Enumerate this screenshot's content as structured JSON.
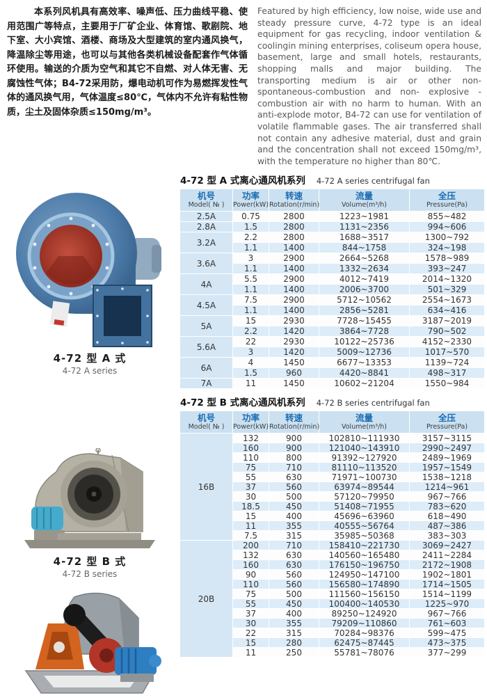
{
  "intro": {
    "chinese": "本系列风机具有高效率、噪声低、压力曲线平稳、使用范围广等特点，主要用于厂矿企业、体育馆、歌剧院、地下室、大小宾馆、酒楼、商场及大型建筑的室内通风换气，降温除尘等用途，也可以与其他各类机械设备配套作气体循环使用。输送的介质为空气和其它不自燃、对人体无害、无腐蚀性气体；B4-72采用防，爆电动机可作为易燃挥发性气体的通风换气用，气体温度≤80℃，气体内不允许有粘性物质，尘土及固体杂质≤150mg/m³。",
    "english": "Featured by high efficiency, low noise, wide use and steady pressure curve, 4-72 type is an ideal equipment for gas recycling, indoor ventilation & coolingin mining enterprises, coliseum opera house, basement, large and small hotels, restaurants, shopping malls and major building. The transporting medium is air or other non- spontaneous-combustion and non- explosive -combustion air with no harm to human. With an anti-explode motor, B4-72 can use for ventilation of volatile flammable gases. The air transferred shall not contain any adhesive material, dust and grain and the concentration shall not exceed 150mg/m³, with the temperature no higher than 80℃."
  },
  "products": [
    {
      "caption_cn": "4-72 型 A 式",
      "caption_en": "4-72 A series",
      "image": "blue-a-type-centrifugal-fan"
    },
    {
      "caption_cn": "4-72 型 B 式",
      "caption_en": "4-72 B series",
      "image": "gray-b-type-centrifugal-fan"
    },
    {
      "caption_cn": "",
      "caption_en": "",
      "image": "belt-driven-centrifugal-fan"
    }
  ],
  "colors": {
    "table_header_bg": "#cbe1f1",
    "table_stripe_bg": "#dcecf8",
    "model_cell_bg": "#d5e7f5",
    "header_text_blue": "#1d6cb1"
  },
  "table_a": {
    "title_cn": "4-72 型 A 式离心通风机系列",
    "title_en": "4-72 A series centrifugal fan",
    "columns": [
      {
        "cn": "机号",
        "en": "Model( № )"
      },
      {
        "cn": "功率",
        "en": "Power(kW)"
      },
      {
        "cn": "转速",
        "en": "Rotation(r/min)"
      },
      {
        "cn": "流量",
        "en": "Volume(m³/h)"
      },
      {
        "cn": "全压",
        "en": "Pressure(Pa)"
      }
    ],
    "groups": [
      {
        "model": "2.5A",
        "rows": [
          [
            "0.75",
            "2800",
            "1223~1981",
            "855~482"
          ]
        ]
      },
      {
        "model": "2.8A",
        "rows": [
          [
            "1.5",
            "2800",
            "1131~2356",
            "994~606"
          ]
        ]
      },
      {
        "model": "3.2A",
        "rows": [
          [
            "2.2",
            "2800",
            "1688~3517",
            "1300~792"
          ],
          [
            "1.1",
            "1400",
            "844~1758",
            "324~198"
          ]
        ]
      },
      {
        "model": "3.6A",
        "rows": [
          [
            "3",
            "2900",
            "2664~5268",
            "1578~989"
          ],
          [
            "1.1",
            "1400",
            "1332~2634",
            "393~247"
          ]
        ]
      },
      {
        "model": "4A",
        "rows": [
          [
            "5.5",
            "2900",
            "4012~7419",
            "2014~1320"
          ],
          [
            "1.1",
            "1400",
            "2006~3700",
            "501~329"
          ]
        ]
      },
      {
        "model": "4.5A",
        "rows": [
          [
            "7.5",
            "2900",
            "5712~10562",
            "2554~1673"
          ],
          [
            "1.1",
            "1400",
            "2856~5281",
            "634~416"
          ]
        ]
      },
      {
        "model": "5A",
        "rows": [
          [
            "15",
            "2930",
            "7728~15455",
            "3187~2019"
          ],
          [
            "2.2",
            "1420",
            "3864~7728",
            "790~502"
          ]
        ]
      },
      {
        "model": "5.6A",
        "rows": [
          [
            "22",
            "2930",
            "10122~25736",
            "4152~2330"
          ],
          [
            "3",
            "1420",
            "5009~12736",
            "1017~570"
          ]
        ]
      },
      {
        "model": "6A",
        "rows": [
          [
            "4",
            "1450",
            "6677~13353",
            "1139~724"
          ],
          [
            "1.5",
            "960",
            "4420~8841",
            "498~317"
          ]
        ]
      },
      {
        "model": "7A",
        "rows": [
          [
            "11",
            "1450",
            "10602~21204",
            "1550~984"
          ]
        ]
      }
    ]
  },
  "table_b": {
    "title_cn": "4-72 型 B 式离心通风机系列",
    "title_en": "4-72 B series centrifugal fan",
    "columns": [
      {
        "cn": "机号",
        "en": "Model( № )"
      },
      {
        "cn": "功率",
        "en": "Power(kW)"
      },
      {
        "cn": "转速",
        "en": "Rotation(r/min)"
      },
      {
        "cn": "流量",
        "en": "Volume(m³/h)"
      },
      {
        "cn": "全压",
        "en": "Pressure(Pa)"
      }
    ],
    "groups": [
      {
        "model": "16B",
        "rows": [
          [
            "132",
            "900",
            "102810~111930",
            "3157~3115"
          ],
          [
            "160",
            "900",
            "121040~143910",
            "2990~2497"
          ],
          [
            "110",
            "800",
            "91392~127920",
            "2489~1969"
          ],
          [
            "75",
            "710",
            "81110~113520",
            "1957~1549"
          ],
          [
            "55",
            "630",
            "71971~100730",
            "1538~1218"
          ],
          [
            "37",
            "560",
            "63974~89544",
            "1214~961"
          ],
          [
            "30",
            "500",
            "57120~79950",
            "967~766"
          ],
          [
            "18.5",
            "450",
            "51408~71955",
            "783~620"
          ],
          [
            "15",
            "400",
            "45696~63960",
            "618~490"
          ],
          [
            "11",
            "355",
            "40555~56764",
            "487~386"
          ],
          [
            "7.5",
            "315",
            "35985~50368",
            "383~303"
          ]
        ]
      },
      {
        "model": "20B",
        "rows": [
          [
            "200",
            "710",
            "158410~221730",
            "3069~2427"
          ],
          [
            "132",
            "630",
            "140560~165480",
            "2411~2284"
          ],
          [
            "160",
            "630",
            "176150~196750",
            "2172~1908"
          ],
          [
            "90",
            "560",
            "124950~147100",
            "1902~1801"
          ],
          [
            "110",
            "560",
            "156580~174890",
            "1714~1505"
          ],
          [
            "75",
            "500",
            "111560~156150",
            "1514~1199"
          ],
          [
            "55",
            "450",
            "100400~140530",
            "1225~970"
          ],
          [
            "37",
            "400",
            "89250~124920",
            "967~766"
          ],
          [
            "30",
            "355",
            "79209~110860",
            "761~603"
          ],
          [
            "22",
            "315",
            "70284~98376",
            "599~475"
          ],
          [
            "15",
            "280",
            "62475~87445",
            "473~375"
          ],
          [
            "11",
            "250",
            "55781~78076",
            "377~299"
          ]
        ]
      }
    ]
  }
}
